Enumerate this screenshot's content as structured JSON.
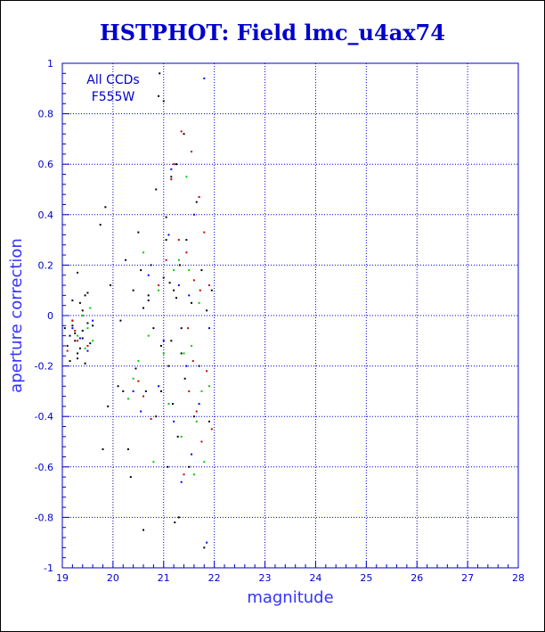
{
  "chart_data": {
    "type": "scatter",
    "title": "HSTPHOT: Field lmc_u4ax74",
    "xlabel": "magnitude",
    "ylabel": "aperture correction",
    "xlim": [
      19,
      28
    ],
    "ylim": [
      -1,
      1
    ],
    "x_ticks": [
      19,
      20,
      21,
      22,
      23,
      24,
      25,
      26,
      27,
      28
    ],
    "y_ticks": [
      -1,
      -0.8,
      -0.6,
      -0.4,
      -0.2,
      0,
      0.2,
      0.4,
      0.6,
      0.8,
      1
    ],
    "grid": true,
    "annotations": [
      "All CCDs",
      "F555W"
    ],
    "colors": {
      "axis": "#0000cc",
      "title": "#0000cc",
      "label": "#3333ff",
      "grid": "#0000cc"
    },
    "series": [
      {
        "color": "#000000",
        "points": [
          [
            19.05,
            -0.05
          ],
          [
            19.1,
            -0.12
          ],
          [
            19.15,
            -0.08
          ],
          [
            19.2,
            -0.02
          ],
          [
            19.25,
            -0.1
          ],
          [
            19.3,
            -0.15
          ],
          [
            19.35,
            0.05
          ],
          [
            19.4,
            -0.06
          ],
          [
            19.45,
            0.08
          ],
          [
            19.5,
            -0.03
          ],
          [
            19.55,
            -0.11
          ],
          [
            19.3,
            -0.17
          ],
          [
            19.2,
            0.06
          ],
          [
            19.4,
            0.02
          ],
          [
            19.25,
            -0.07
          ],
          [
            19.35,
            -0.13
          ],
          [
            19.15,
            -0.18
          ],
          [
            19.5,
            0.09
          ],
          [
            19.6,
            -0.04
          ],
          [
            19.45,
            -0.19
          ],
          [
            19.3,
            0.17
          ],
          [
            19.2,
            -0.04
          ],
          [
            19.4,
            -0.09
          ],
          [
            19.75,
            0.36
          ],
          [
            19.85,
            0.43
          ],
          [
            19.8,
            -0.53
          ],
          [
            19.9,
            -0.36
          ],
          [
            19.95,
            0.12
          ],
          [
            20.1,
            -0.28
          ],
          [
            20.15,
            -0.02
          ],
          [
            20.2,
            -0.3
          ],
          [
            20.25,
            0.22
          ],
          [
            20.3,
            -0.53
          ],
          [
            20.35,
            -0.64
          ],
          [
            20.4,
            0.1
          ],
          [
            20.45,
            -0.21
          ],
          [
            20.5,
            0.33
          ],
          [
            20.55,
            0.18
          ],
          [
            20.6,
            -0.85
          ],
          [
            20.65,
            -0.3
          ],
          [
            20.7,
            0.08
          ],
          [
            20.75,
            0.2
          ],
          [
            20.8,
            -0.05
          ],
          [
            20.85,
            0.5
          ],
          [
            20.9,
            0.87
          ],
          [
            20.92,
            0.96
          ],
          [
            20.95,
            -0.12
          ],
          [
            21.0,
            0.85
          ],
          [
            21.05,
            0.39
          ],
          [
            21.08,
            -0.6
          ],
          [
            21.1,
            -0.2
          ],
          [
            21.12,
            0.13
          ],
          [
            21.15,
            0.55
          ],
          [
            21.18,
            -0.35
          ],
          [
            21.2,
            0.1
          ],
          [
            21.22,
            -0.82
          ],
          [
            21.25,
            0.6
          ],
          [
            21.28,
            -0.48
          ],
          [
            21.3,
            -0.8
          ],
          [
            21.32,
            0.2
          ],
          [
            21.35,
            -0.05
          ],
          [
            21.4,
            0.72
          ],
          [
            21.42,
            -0.25
          ],
          [
            21.45,
            0.3
          ],
          [
            21.5,
            -0.6
          ],
          [
            21.55,
            0.05
          ],
          [
            21.6,
            -0.4
          ],
          [
            21.65,
            0.45
          ],
          [
            21.7,
            -0.2
          ],
          [
            21.75,
            0.18
          ],
          [
            21.8,
            -0.92
          ],
          [
            21.85,
            0.02
          ],
          [
            21.9,
            -0.42
          ],
          [
            21.95,
            0.1
          ],
          [
            20.7,
            0.06
          ],
          [
            20.95,
            -0.3
          ],
          [
            21.05,
            0.3
          ],
          [
            21.15,
            -0.1
          ],
          [
            21.25,
            0.07
          ],
          [
            20.85,
            -0.4
          ],
          [
            21.0,
            0.15
          ],
          [
            20.6,
            0.03
          ],
          [
            21.35,
            -0.15
          ]
        ]
      },
      {
        "color": "#cc0000",
        "points": [
          [
            19.1,
            -0.14
          ],
          [
            19.2,
            -0.02
          ],
          [
            19.3,
            -0.1
          ],
          [
            19.4,
            0.0
          ],
          [
            19.25,
            -0.06
          ],
          [
            19.5,
            -0.12
          ],
          [
            20.5,
            -0.26
          ],
          [
            20.6,
            -0.32
          ],
          [
            20.75,
            -0.41
          ],
          [
            20.9,
            0.12
          ],
          [
            21.05,
            0.22
          ],
          [
            21.15,
            0.54
          ],
          [
            21.2,
            0.6
          ],
          [
            21.3,
            0.3
          ],
          [
            21.35,
            0.73
          ],
          [
            21.4,
            -0.63
          ],
          [
            21.45,
            0.25
          ],
          [
            21.5,
            -0.3
          ],
          [
            21.55,
            0.65
          ],
          [
            21.6,
            0.14
          ],
          [
            21.65,
            -0.38
          ],
          [
            21.7,
            0.47
          ],
          [
            21.72,
            0.1
          ],
          [
            21.75,
            -0.5
          ],
          [
            21.8,
            0.33
          ],
          [
            21.85,
            -0.22
          ],
          [
            21.9,
            0.12
          ],
          [
            21.95,
            -0.45
          ],
          [
            21.48,
            -0.05
          ],
          [
            21.58,
            -0.18
          ]
        ]
      },
      {
        "color": "#00cc00",
        "points": [
          [
            19.3,
            -0.08
          ],
          [
            19.4,
            0.0
          ],
          [
            19.5,
            -0.05
          ],
          [
            19.6,
            -0.1
          ],
          [
            19.55,
            0.03
          ],
          [
            19.45,
            -0.13
          ],
          [
            20.3,
            -0.33
          ],
          [
            20.4,
            -0.25
          ],
          [
            20.5,
            -0.18
          ],
          [
            20.6,
            0.25
          ],
          [
            20.7,
            -0.08
          ],
          [
            20.8,
            -0.58
          ],
          [
            20.9,
            0.1
          ],
          [
            21.0,
            -0.15
          ],
          [
            21.1,
            -0.35
          ],
          [
            21.2,
            0.18
          ],
          [
            21.3,
            0.22
          ],
          [
            21.35,
            -0.48
          ],
          [
            21.4,
            -0.15
          ],
          [
            21.45,
            0.55
          ],
          [
            21.5,
            0.18
          ],
          [
            21.55,
            -0.12
          ],
          [
            21.6,
            -0.63
          ],
          [
            21.65,
            -0.42
          ],
          [
            21.7,
            0.05
          ],
          [
            21.75,
            -0.3
          ],
          [
            21.8,
            -0.58
          ],
          [
            21.9,
            -0.28
          ]
        ]
      },
      {
        "color": "#0000ff",
        "points": [
          [
            19.2,
            -0.05
          ],
          [
            19.35,
            -0.09
          ],
          [
            19.5,
            -0.14
          ],
          [
            19.6,
            -0.02
          ],
          [
            20.4,
            -0.3
          ],
          [
            20.55,
            -0.38
          ],
          [
            20.7,
            0.16
          ],
          [
            20.9,
            -0.28
          ],
          [
            21.0,
            -0.1
          ],
          [
            21.1,
            0.32
          ],
          [
            21.15,
            0.58
          ],
          [
            21.2,
            -0.42
          ],
          [
            21.3,
            0.12
          ],
          [
            21.35,
            -0.66
          ],
          [
            21.45,
            -0.2
          ],
          [
            21.5,
            0.08
          ],
          [
            21.55,
            -0.55
          ],
          [
            21.6,
            0.4
          ],
          [
            21.7,
            -0.35
          ],
          [
            21.8,
            0.94
          ],
          [
            21.85,
            -0.9
          ],
          [
            21.9,
            -0.05
          ]
        ]
      }
    ]
  }
}
